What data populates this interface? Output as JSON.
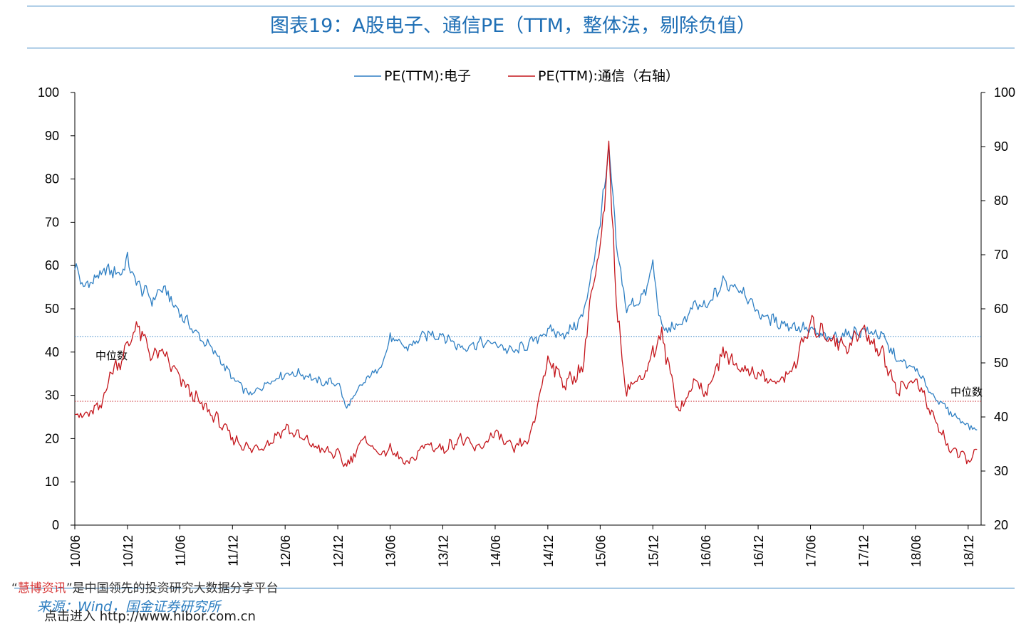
{
  "title": "图表19：A股电子、通信PE（TTM，整体法，剔除负值）",
  "footer": {
    "brand_line_quote_open": "“",
    "brand": "慧博资讯",
    "brand_line_rest": "”是中国领先的投资研究大数据分享平台",
    "source": "来源：Wind，国金证券研究所",
    "link": "点击进入 http://www.hibor.com.cn"
  },
  "colors": {
    "title": "#1f6fb5",
    "rule": "#2f7fc1",
    "electronics": "#2e7fc3",
    "telecom": "#c4161c"
  },
  "chart_data": {
    "type": "line",
    "title": "",
    "xlabel": "",
    "ylabel": "",
    "x_ticks": [
      "10/06",
      "10/12",
      "11/06",
      "11/12",
      "12/06",
      "12/12",
      "13/06",
      "13/12",
      "14/06",
      "14/12",
      "15/06",
      "15/12",
      "16/06",
      "16/12",
      "17/06",
      "17/12",
      "18/06",
      "18/12"
    ],
    "ylim_left": [
      0,
      100
    ],
    "yticks_left": [
      0,
      10,
      20,
      30,
      40,
      50,
      60,
      70,
      80,
      90,
      100
    ],
    "ylim_right": [
      20,
      100
    ],
    "yticks_right": [
      20,
      30,
      40,
      50,
      60,
      70,
      80,
      90,
      100
    ],
    "legend_position": "top-center",
    "grid": false,
    "series": [
      {
        "name": "PE(TTM):电子",
        "axis": "left",
        "color": "#2e7fc3",
        "median": 43.6,
        "median_label": "中位数",
        "x": [
          "2010-06",
          "2010-07",
          "2010-09",
          "2010-10",
          "2010-11",
          "2010-12",
          "2011-01",
          "2011-03",
          "2011-04",
          "2011-06",
          "2011-08",
          "2011-10",
          "2011-12",
          "2012-02",
          "2012-04",
          "2012-06",
          "2012-08",
          "2012-10",
          "2012-12",
          "2013-01",
          "2013-03",
          "2013-05",
          "2013-06",
          "2013-08",
          "2013-10",
          "2013-12",
          "2014-02",
          "2014-04",
          "2014-06",
          "2014-08",
          "2014-10",
          "2014-12",
          "2015-02",
          "2015-04",
          "2015-05",
          "2015-06",
          "2015-07",
          "2015-08",
          "2015-09",
          "2015-11",
          "2015-12",
          "2016-01",
          "2016-03",
          "2016-05",
          "2016-06",
          "2016-08",
          "2016-10",
          "2016-12",
          "2017-02",
          "2017-04",
          "2017-06",
          "2017-08",
          "2017-10",
          "2017-12",
          "2018-02",
          "2018-04",
          "2018-06",
          "2018-08",
          "2018-10",
          "2018-12",
          "2019-01"
        ],
        "values": [
          60,
          55,
          58,
          59,
          58,
          61,
          56,
          52,
          55,
          49,
          44,
          40,
          34,
          30,
          33,
          35,
          35,
          33,
          33,
          27,
          33,
          37,
          43,
          41,
          44,
          44,
          41,
          42,
          42,
          40,
          42,
          45,
          44,
          48,
          58,
          70,
          86,
          62,
          50,
          53,
          60,
          45,
          46,
          51,
          50,
          56,
          55,
          49,
          47,
          46,
          45,
          43,
          44,
          45,
          44,
          38,
          36,
          30,
          26,
          23,
          22
        ]
      },
      {
        "name": "PE(TTM):通信（右轴）",
        "axis": "right",
        "color": "#c4161c",
        "median": 42.9,
        "median_label": "中位数",
        "x": [
          "2010-06",
          "2010-07",
          "2010-09",
          "2010-10",
          "2010-11",
          "2010-12",
          "2011-01",
          "2011-03",
          "2011-04",
          "2011-06",
          "2011-08",
          "2011-10",
          "2011-12",
          "2012-02",
          "2012-04",
          "2012-06",
          "2012-08",
          "2012-10",
          "2012-12",
          "2013-01",
          "2013-03",
          "2013-05",
          "2013-06",
          "2013-08",
          "2013-10",
          "2013-12",
          "2014-02",
          "2014-04",
          "2014-06",
          "2014-08",
          "2014-10",
          "2014-12",
          "2015-02",
          "2015-04",
          "2015-05",
          "2015-06",
          "2015-07",
          "2015-08",
          "2015-09",
          "2015-11",
          "2015-12",
          "2016-01",
          "2016-03",
          "2016-05",
          "2016-06",
          "2016-08",
          "2016-10",
          "2016-12",
          "2017-02",
          "2017-04",
          "2017-06",
          "2017-08",
          "2017-10",
          "2017-12",
          "2018-02",
          "2018-04",
          "2018-06",
          "2018-08",
          "2018-10",
          "2018-12",
          "2019-01"
        ],
        "values": [
          41,
          40,
          42,
          48,
          50,
          53,
          57,
          51,
          52,
          47,
          43,
          40,
          36,
          34,
          35,
          38,
          36,
          34,
          33,
          31,
          36,
          33,
          34,
          31,
          35,
          34,
          36,
          34,
          37,
          34,
          36,
          51,
          46,
          49,
          63,
          70,
          89,
          58,
          45,
          48,
          52,
          55,
          41,
          47,
          44,
          52,
          49,
          48,
          46,
          49,
          57,
          55,
          53,
          56,
          52,
          45,
          47,
          40,
          34,
          32,
          34
        ]
      }
    ]
  }
}
